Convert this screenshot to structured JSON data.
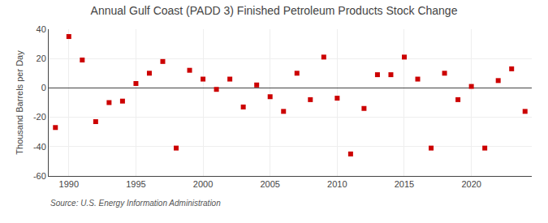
{
  "chart_data": {
    "type": "scatter",
    "title": "Annual Gulf Coast (PADD 3) Finished Petroleum Products Stock Change",
    "ylabel": "Thousand Barrels per Day",
    "source": "Source: U.S. Energy Information Administration",
    "x": [
      1989,
      1990,
      1991,
      1992,
      1993,
      1994,
      1995,
      1996,
      1997,
      1998,
      1999,
      2000,
      2001,
      2002,
      2003,
      2004,
      2005,
      2006,
      2007,
      2008,
      2009,
      2010,
      2011,
      2012,
      2013,
      2014,
      2015,
      2016,
      2017,
      2018,
      2019,
      2020,
      2021,
      2022,
      2023,
      2024
    ],
    "values": [
      -27,
      35,
      19,
      -23,
      -10,
      -9,
      3,
      10,
      18,
      -41,
      12,
      6,
      -1,
      6,
      -13,
      2,
      -6,
      -16,
      10,
      -8,
      21,
      -7,
      -45,
      -14,
      9,
      9,
      21,
      6,
      -41,
      10,
      -8,
      1,
      -41,
      5,
      13,
      -16
    ],
    "color": "#cc0000",
    "marker": "square",
    "xlim": [
      1988.5,
      2024.5
    ],
    "xticks": [
      1990,
      1995,
      2000,
      2005,
      2010,
      2015,
      2020
    ],
    "ylim": [
      -60,
      40
    ],
    "yticks": [
      -60,
      -40,
      -20,
      0,
      20,
      40
    ],
    "grid": true
  }
}
